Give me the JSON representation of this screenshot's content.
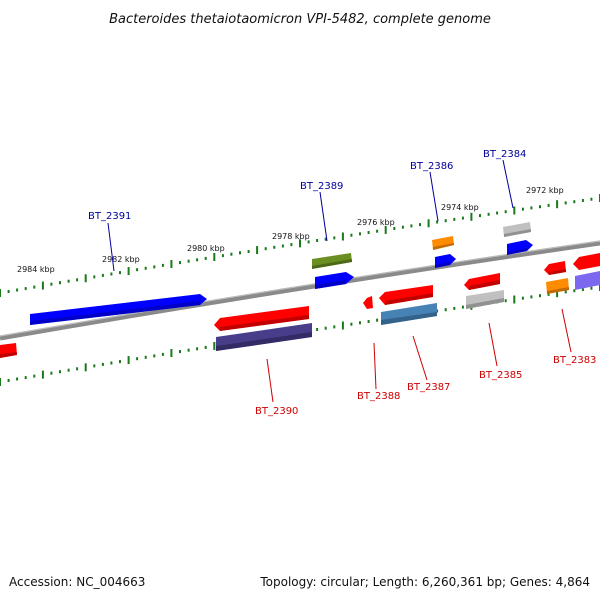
{
  "title": "Bacteroides thetaiotaomicron VPI-5482, complete genome",
  "footer": {
    "accession": "Accession: NC_004663",
    "summary": "Topology: circular; Length: 6,260,361 bp; Genes: 4,864"
  },
  "colors": {
    "forward_label": "#000099",
    "reverse_label": "#cc0000",
    "backbone": "#888888",
    "ticks": "#1a7a1a",
    "red": "#ff0000",
    "blue": "#0000ff",
    "olive": "#6b8e23",
    "orange": "#ff8c00",
    "grey": "#c0c0c0",
    "steelblue": "#4682b4",
    "slate": "#483d8b",
    "mediumslate": "#7b68ee"
  },
  "kbp_ticks": [
    "2984 kbp",
    "2982 kbp",
    "2980 kbp",
    "2978 kbp",
    "2976 kbp",
    "2974 kbp",
    "2972 kbp"
  ],
  "gene_labels": {
    "forward": [
      "BT_2391",
      "BT_2389",
      "BT_2386",
      "BT_2384"
    ],
    "reverse": [
      "BT_2390",
      "BT_2388",
      "BT_2387",
      "BT_2385",
      "BT_2383"
    ]
  }
}
